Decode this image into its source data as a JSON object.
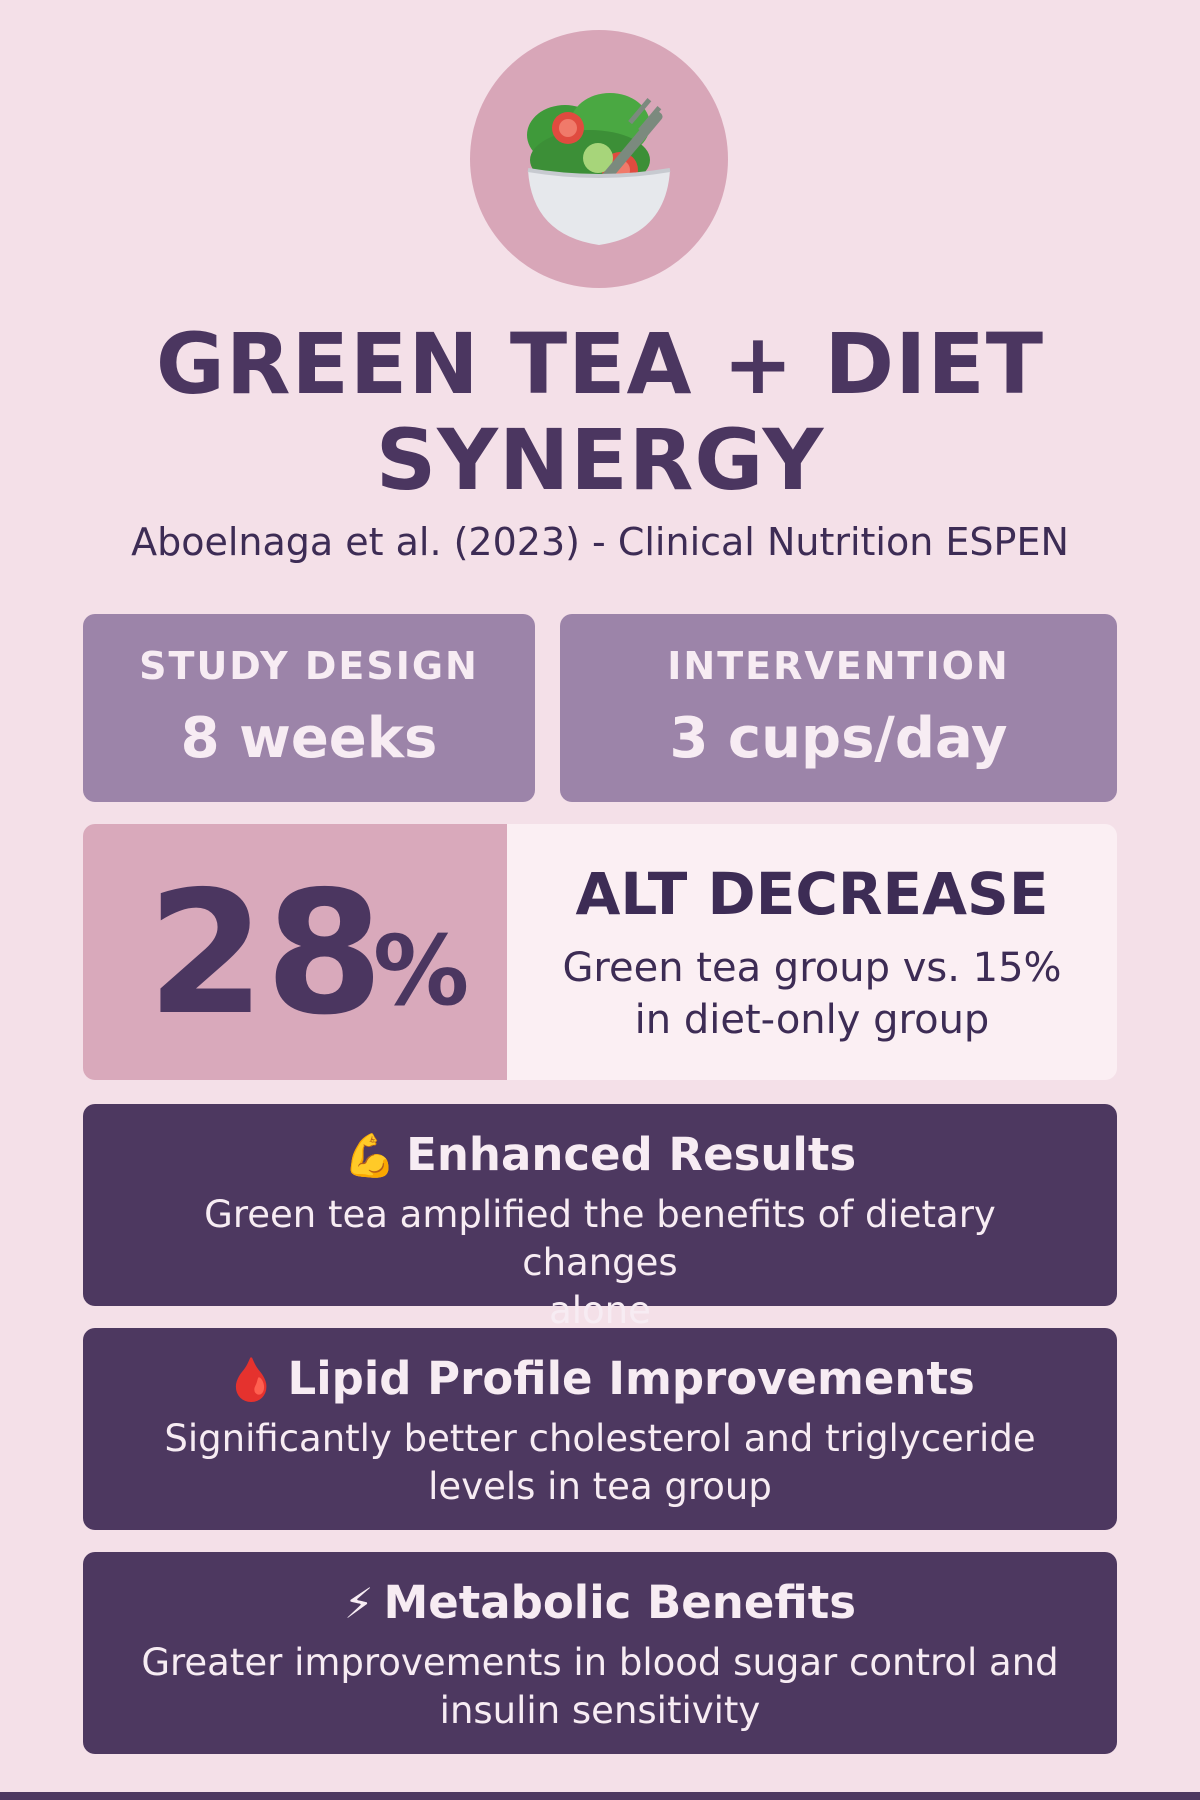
{
  "header": {
    "icon": "salad-bowl-icon",
    "title_line1": "GREEN TEA + DIET",
    "title_line2": "SYNERGY",
    "citation": "Aboelnaga et al. (2023) - Clinical Nutrition ESPEN"
  },
  "stats": {
    "study_design_label": "STUDY DESIGN",
    "study_design_value": "8 weeks",
    "intervention_label": "INTERVENTION",
    "intervention_value": "3 cups/day"
  },
  "alt": {
    "number": "28",
    "percent_sign": "%",
    "heading": "ALT DECREASE",
    "desc_line1": "Green tea group vs. 15%",
    "desc_line2": "in diet-only group"
  },
  "features": [
    {
      "icon": "flexed-bicep-icon",
      "emoji": "💪",
      "title": "Enhanced Results",
      "desc_line1": "Green tea amplified the benefits of dietary changes",
      "desc_line2": "alone"
    },
    {
      "icon": "blood-drop-icon",
      "emoji": "🩸",
      "title": "Lipid Profile Improvements",
      "desc_line1": "Significantly better cholesterol and triglyceride",
      "desc_line2": "levels in tea group"
    },
    {
      "icon": "lightning-icon",
      "emoji": "⚡",
      "title": "Metabolic Benefits",
      "desc_line1": "Greater improvements in blood sugar control and",
      "desc_line2": "insulin sensitivity"
    }
  ],
  "colors": {
    "background": "#f4e0e8",
    "primary_dark": "#4d3860",
    "card_muted": "#9c84a9",
    "accent_pink": "#d9a9bb",
    "light_panel": "#fbeff3"
  }
}
